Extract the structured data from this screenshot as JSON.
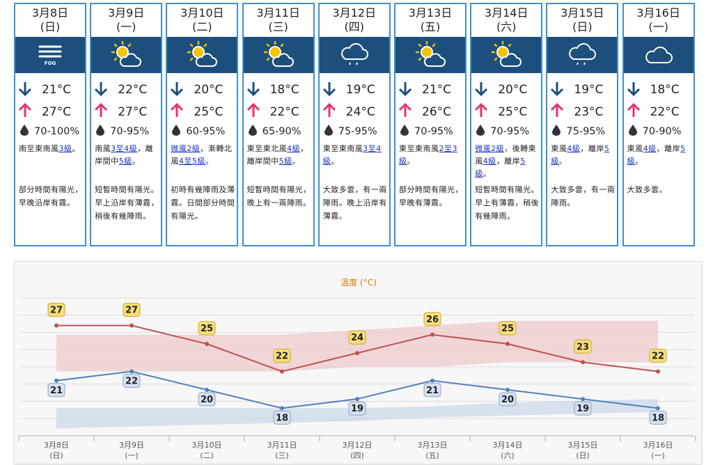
{
  "forecast": [
    {
      "date": "3月8日",
      "weekday": "(日)",
      "icon": "fog-icon",
      "icon_caption": "FOG",
      "min": "21°C",
      "max": "27°C",
      "humidity": "70-100%",
      "wind": [
        {
          "t": "南至東南風"
        },
        {
          "t": "3級",
          "link": true
        },
        {
          "t": "。"
        }
      ],
      "desc": "部分時間有陽光，早晚沿岸有霧。"
    },
    {
      "date": "3月9日",
      "weekday": "(一)",
      "icon": "sun-cloud-icon",
      "min": "22°C",
      "max": "27°C",
      "humidity": "70-95%",
      "wind": [
        {
          "t": "南風"
        },
        {
          "t": "3至4級",
          "link": true
        },
        {
          "t": "，離岸間中"
        },
        {
          "t": "5級",
          "link": true
        },
        {
          "t": "。"
        }
      ],
      "desc": "短暫時間有陽光。早上沿岸有薄霧，稍後有幾陣雨。"
    },
    {
      "date": "3月10日",
      "weekday": "(二)",
      "icon": "sun-cloud-icon",
      "min": "20°C",
      "max": "25°C",
      "humidity": "60-95%",
      "wind": [
        {
          "t": "微風2級",
          "link": true
        },
        {
          "t": "，漸轉北風"
        },
        {
          "t": "4至5級",
          "link": true
        },
        {
          "t": "。"
        }
      ],
      "desc": "初時有幾陣雨及薄霧。日間部分時間有陽光。"
    },
    {
      "date": "3月11日",
      "weekday": "(三)",
      "icon": "sun-cloud-icon",
      "min": "18°C",
      "max": "22°C",
      "humidity": "65-90%",
      "wind": [
        {
          "t": "東至東北風"
        },
        {
          "t": "4級",
          "link": true
        },
        {
          "t": "，離岸間中"
        },
        {
          "t": "5級",
          "link": true
        },
        {
          "t": "。"
        }
      ],
      "desc": "短暫時間有陽光，晚上有一兩陣雨。"
    },
    {
      "date": "3月12日",
      "weekday": "(四)",
      "icon": "rain-cloud-icon",
      "min": "19°C",
      "max": "24°C",
      "humidity": "75-95%",
      "wind": [
        {
          "t": "東至東南風"
        },
        {
          "t": "3至4級",
          "link": true
        },
        {
          "t": "。"
        }
      ],
      "desc": "大致多雲，有一兩陣雨。晚上沿岸有薄霧。"
    },
    {
      "date": "3月13日",
      "weekday": "(五)",
      "icon": "sun-cloud-icon",
      "min": "21°C",
      "max": "26°C",
      "humidity": "70-95%",
      "wind": [
        {
          "t": "東至東南風"
        },
        {
          "t": "2至3級",
          "link": true
        },
        {
          "t": "。"
        }
      ],
      "desc": "部分時間有陽光，早晚有薄霧。"
    },
    {
      "date": "3月14日",
      "weekday": "(六)",
      "icon": "sun-cloud-icon",
      "min": "20°C",
      "max": "25°C",
      "humidity": "70-95%",
      "wind": [
        {
          "t": "微風2級",
          "link": true
        },
        {
          "t": "，後轉東風"
        },
        {
          "t": "4級",
          "link": true
        },
        {
          "t": "，離岸"
        },
        {
          "t": "5級",
          "link": true
        },
        {
          "t": "。"
        }
      ],
      "desc": "短暫時間有陽光。早上有薄霧，稍後有幾陣雨。"
    },
    {
      "date": "3月15日",
      "weekday": "(日)",
      "icon": "rain-cloud-icon",
      "min": "19°C",
      "max": "23°C",
      "humidity": "75-95%",
      "wind": [
        {
          "t": "東風"
        },
        {
          "t": "4級",
          "link": true
        },
        {
          "t": "，離岸"
        },
        {
          "t": "5級",
          "link": true
        },
        {
          "t": "。"
        }
      ],
      "desc": "大致多雲，有一兩陣雨。"
    },
    {
      "date": "3月16日",
      "weekday": "(一)",
      "icon": "cloud-icon",
      "min": "18°C",
      "max": "22°C",
      "humidity": "70-90%",
      "wind": [
        {
          "t": "東風"
        },
        {
          "t": "4級",
          "link": true
        },
        {
          "t": "，離岸"
        },
        {
          "t": "5",
          "link": true
        },
        {
          "t": "級",
          "link": true
        },
        {
          "t": "。"
        }
      ],
      "desc": "大致多雲。"
    }
  ],
  "colors": {
    "card_border": "#3d8fd0",
    "icon_bar": "#1d4f7c",
    "arrow_down": "#1d4f7c",
    "arrow_up": "#e8336b",
    "link": "#1a33b8",
    "max_line": "#c0504d",
    "min_line": "#4f81bd",
    "chart_title": "#e07b00"
  },
  "chart_data": {
    "type": "line",
    "title": "溫度 (°C)",
    "categories": [
      "3月8日",
      "3月9日",
      "3月10日",
      "3月11日",
      "3月12日",
      "3月13日",
      "3月14日",
      "3月15日",
      "3月16日"
    ],
    "category_sub": [
      "(日)",
      "(一)",
      "(二)",
      "(三)",
      "(四)",
      "(五)",
      "(六)",
      "(日)",
      "(一)"
    ],
    "series": [
      {
        "values": [
          27,
          27,
          25,
          22,
          24,
          26,
          25,
          23,
          22
        ]
      },
      {
        "values": [
          21,
          22,
          20,
          18,
          19,
          21,
          20,
          19,
          18
        ]
      }
    ],
    "bands": {
      "max_range": [
        [
          22,
          26
        ],
        [
          22,
          26
        ],
        [
          22,
          26
        ],
        [
          22,
          26
        ],
        [
          22.5,
          26.5
        ],
        [
          22.5,
          27
        ],
        [
          23,
          27.5
        ],
        [
          23,
          27.5
        ],
        [
          23,
          27.5
        ]
      ],
      "min_range": [
        [
          15.8,
          18
        ],
        [
          16,
          18
        ],
        [
          16.2,
          18
        ],
        [
          16.4,
          18
        ],
        [
          16.6,
          18
        ],
        [
          17,
          18.2
        ],
        [
          17.2,
          18.6
        ],
        [
          17.4,
          18.8
        ],
        [
          17.6,
          19
        ]
      ]
    },
    "ylim": [
      15,
      30
    ],
    "grid": true
  }
}
